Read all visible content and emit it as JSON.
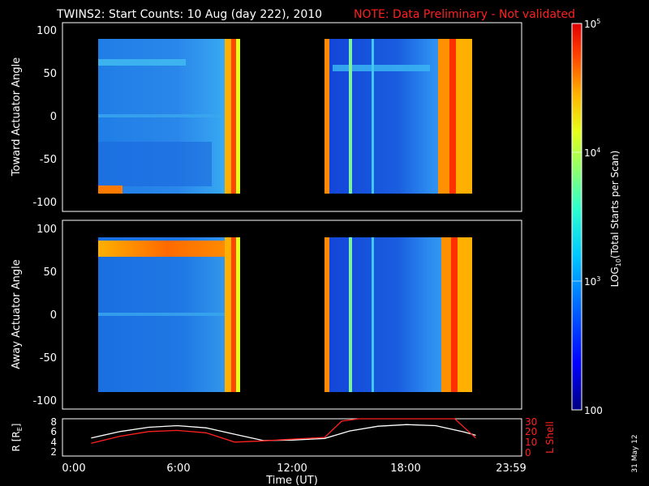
{
  "title": "TWINS2: Start Counts: 10 Aug (day 222), 2010",
  "note": "NOTE: Data Preliminary - Not validated",
  "date_stamp": "31 May 12",
  "colors": {
    "background": "#000000",
    "axes": "#ffffff",
    "note": "#ff2020",
    "r_line": "#ffffff",
    "l_line": "#ff2020"
  },
  "chart_data": [
    {
      "type": "heatmap",
      "ylabel": "Toward Actuator Angle",
      "yticks": [
        100,
        50,
        0,
        -50,
        -100
      ],
      "ylim": [
        -110,
        110
      ],
      "xlim": [
        0,
        24
      ],
      "data_blocks": [
        {
          "x": [
            1.5,
            9.0
          ],
          "y": [
            -90,
            90
          ]
        },
        {
          "x": [
            13.7,
            21.6
          ],
          "y": [
            -90,
            90
          ]
        }
      ]
    },
    {
      "type": "heatmap",
      "ylabel": "Away Actuator Angle",
      "yticks": [
        100,
        50,
        0,
        -50,
        -100
      ],
      "ylim": [
        -110,
        110
      ],
      "xlim": [
        0,
        24
      ],
      "data_blocks": [
        {
          "x": [
            1.5,
            9.0
          ],
          "y": [
            -90,
            90
          ]
        },
        {
          "x": [
            13.7,
            21.6
          ],
          "y": [
            -90,
            90
          ]
        }
      ]
    },
    {
      "type": "line",
      "xlabel": "Time (UT)",
      "xticks": [
        "0:00",
        "6:00",
        "12:00",
        "18:00",
        "23:59"
      ],
      "xtick_values": [
        0,
        6,
        12,
        18,
        23.98
      ],
      "ylabel_left_main": "R [R",
      "ylabel_left_sub": "E",
      "ylabel_left_end": "]",
      "yticks_left": [
        2,
        4,
        6,
        8
      ],
      "ylim_left": [
        1.5,
        8.5
      ],
      "ylabel_right": "L Shell",
      "yticks_right": [
        0,
        10,
        20,
        30
      ],
      "ylim_right": [
        0,
        32
      ],
      "series": [
        {
          "name": "R",
          "axis": "left",
          "x": [
            1.5,
            3,
            4.5,
            6,
            7.5,
            9,
            10.5,
            12,
            13.7,
            15,
            16.5,
            18,
            19.5,
            21,
            21.6
          ],
          "values": [
            4.9,
            6.1,
            6.9,
            7.2,
            6.8,
            5.6,
            4.4,
            4.5,
            4.8,
            6.2,
            7.1,
            7.4,
            7.2,
            6.0,
            5.4
          ]
        },
        {
          "name": "L Shell",
          "axis": "right",
          "x": [
            1.5,
            3,
            4.5,
            6,
            7.5,
            9,
            10.5,
            12,
            13.7,
            14.6,
            15.5,
            20.5,
            21.6
          ],
          "values": [
            11.0,
            17.0,
            21.0,
            22.0,
            20.0,
            12.0,
            13.0,
            14.5,
            16.0,
            30.0,
            34.0,
            34.0,
            15.5
          ]
        }
      ]
    }
  ],
  "colorbar": {
    "label_main": "LOG",
    "label_sub": "10",
    "label_rest": "(Total Starts per Scan)",
    "ticks": [
      {
        "base": "10",
        "exp": "5",
        "value": 100000
      },
      {
        "base": "10",
        "exp": "4",
        "value": 10000
      },
      {
        "base": "10",
        "exp": "3",
        "value": 1000
      },
      {
        "base": "100",
        "exp": "",
        "value": 100
      }
    ],
    "range": [
      100,
      100000
    ],
    "stops": [
      "#00007f",
      "#0000ff",
      "#0070ff",
      "#00c8ff",
      "#2dffd0",
      "#8cff70",
      "#e6ff1a",
      "#ffb000",
      "#ff4000",
      "#e00000"
    ]
  }
}
